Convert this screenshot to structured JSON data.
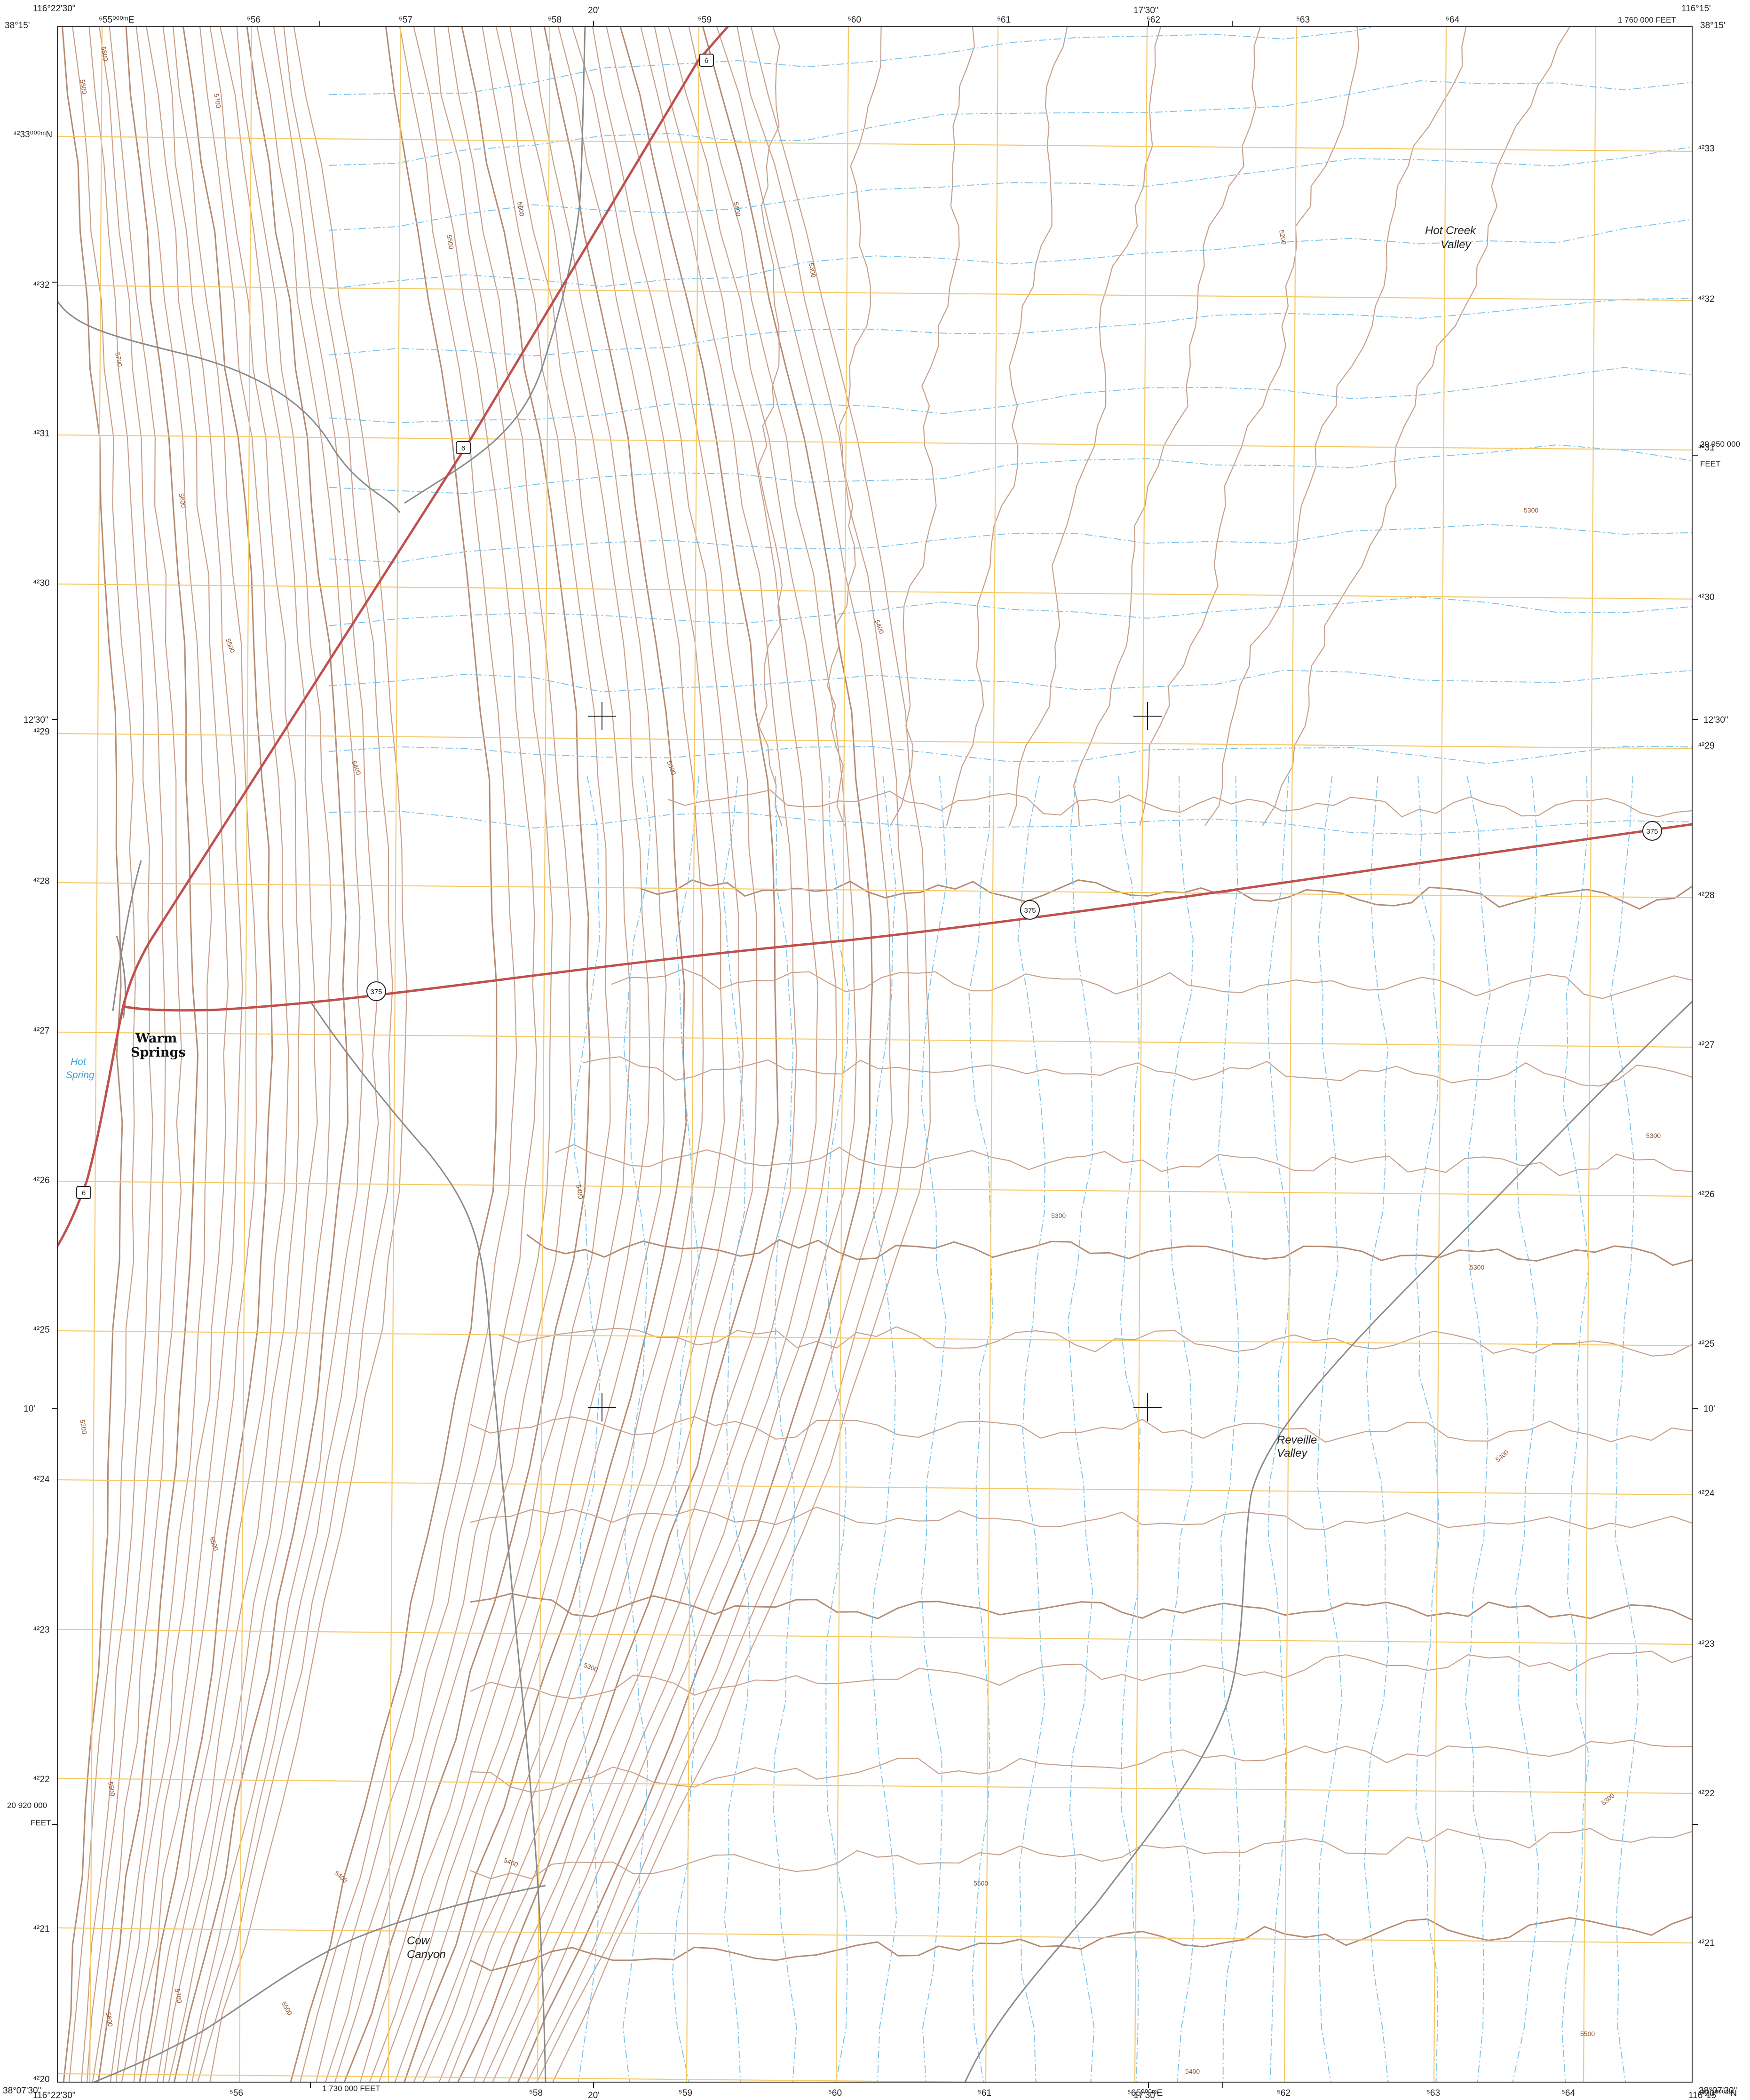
{
  "map": {
    "corners": {
      "top_left_lon": "116°22'30\"",
      "top_left_lat": "38°15'",
      "top_right_lon": "116°15'",
      "top_right_lat": "38°15'",
      "bottom_left_lat": "38°07'30\"",
      "bottom_left_lon": "116°22'30\"",
      "bottom_right_lat": "38°07'30\"",
      "bottom_right_lon": "116°15'"
    },
    "top_utm_labels": [
      "⁵55⁰⁰⁰ᵐE",
      "⁵56",
      "⁵57",
      "⁵58",
      "⁵59",
      "⁵60",
      "⁵61",
      "⁵62",
      "⁵63",
      "⁵64"
    ],
    "bottom_utm_labels": [
      "⁵56",
      "⁵58",
      "⁵59",
      "⁵60",
      "⁵61",
      "⁵62",
      "⁵63",
      "⁵64",
      "⁵65⁰⁰⁰ᵐE"
    ],
    "left_utm_labels": [
      "⁴²33⁰⁰⁰ᵐN",
      "⁴²32",
      "⁴²31",
      "⁴²30",
      "⁴²29",
      "⁴²28",
      "⁴²27",
      "⁴²26",
      "⁴²25",
      "⁴²24",
      "⁴²23",
      "⁴²22",
      "⁴²21",
      "⁴²20"
    ],
    "right_utm_labels": [
      "⁴²33",
      "⁴²32",
      "⁴²31",
      "⁴²30",
      "⁴²29",
      "⁴²28",
      "⁴²27",
      "⁴²26",
      "⁴²25",
      "⁴²24",
      "⁴²23",
      "⁴²22",
      "⁴²21",
      "⁴²20⁰⁰⁰ᵐN"
    ],
    "top_lon_ticks": [
      "20'",
      "17'30\""
    ],
    "bottom_lon_ticks": [
      "20'",
      "17'30\""
    ],
    "lat_ticks": [
      "12'30\"",
      "10'"
    ],
    "feet_labels": {
      "top_right": "1 760 000 FEET",
      "bottom": "1 730 000 FEET",
      "right": "20 950 000",
      "right_unit": "FEET",
      "left": "20 920 000",
      "left_unit": "FEET"
    },
    "place_names": {
      "warm_springs_line1": "Warm",
      "warm_springs_line2": "Springs",
      "hot_spring_line1": "Hot",
      "hot_spring_line2": "Spring",
      "hot_creek_valley_line1": "Hot Creek",
      "hot_creek_valley_line2": "Valley",
      "reveille_valley_line1": "Reveille",
      "reveille_valley_line2": "Valley",
      "cow_canyon_line1": "Cow",
      "cow_canyon_line2": "Canyon"
    },
    "route_shields": {
      "us6": "6",
      "nv375": "375"
    },
    "contour_labels": [
      "5800",
      "5800",
      "5700",
      "5600",
      "5500",
      "5400",
      "5300",
      "5200",
      "5700",
      "5600",
      "5500",
      "5400",
      "5300",
      "5400",
      "5300",
      "5300",
      "5300",
      "5300",
      "5200",
      "5600",
      "5500",
      "5700",
      "5600",
      "5500",
      "5400",
      "5300",
      "5400",
      "5500",
      "5400",
      "5400",
      "5300",
      "5400",
      "5500"
    ],
    "colors": {
      "grid": "#f6c86a",
      "contour": "#c8a08a",
      "index_contour": "#b58b72",
      "stream": "#7ec3ea",
      "highway": "#c0504d",
      "road": "#8a8a8a",
      "neatline": "#333333"
    }
  }
}
